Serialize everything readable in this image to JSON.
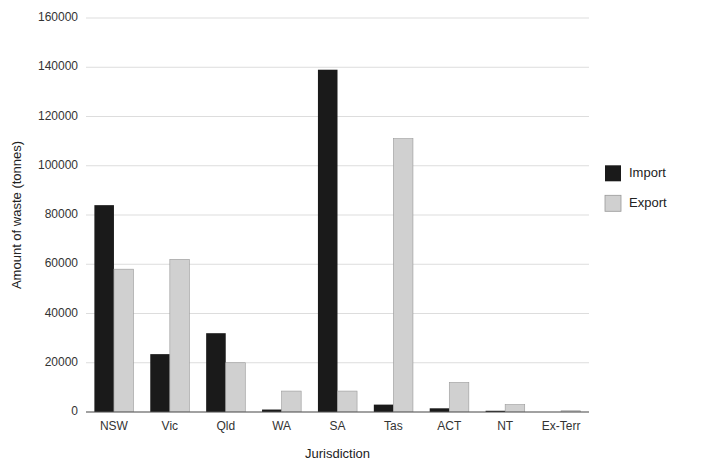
{
  "chart_data": {
    "type": "bar",
    "categories": [
      "NSW",
      "Vic",
      "Qld",
      "WA",
      "SA",
      "Tas",
      "ACT",
      "NT",
      "Ex-Terr"
    ],
    "series": [
      {
        "name": "Import",
        "color": "#1a1a1a",
        "values": [
          84000,
          23500,
          32000,
          1000,
          139000,
          3000,
          1500,
          500,
          0
        ]
      },
      {
        "name": "Export",
        "color": "#d0d0d0",
        "values": [
          58000,
          62000,
          20000,
          8500,
          8500,
          111000,
          12000,
          3000,
          500
        ]
      }
    ],
    "xlabel": "Jurisdiction",
    "ylabel": "Amount of waste (tonnes)",
    "ylim": [
      0,
      160000
    ],
    "yticks": [
      0,
      20000,
      40000,
      60000,
      80000,
      100000,
      120000,
      140000,
      160000
    ],
    "grid": true,
    "legend": "right"
  }
}
